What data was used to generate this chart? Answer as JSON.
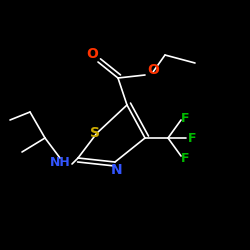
{
  "bg_color": "#000000",
  "bond_color": "#ffffff",
  "S_color": "#ccaa00",
  "N_color": "#3355ff",
  "O_color": "#ff3300",
  "F_color": "#00bb00",
  "label_S": "S",
  "label_N": "N",
  "label_NH": "NH",
  "label_O1": "O",
  "label_O2": "O",
  "label_F1": "F",
  "label_F2": "F",
  "label_F3": "F",
  "font_size": 9,
  "lw": 1.2
}
